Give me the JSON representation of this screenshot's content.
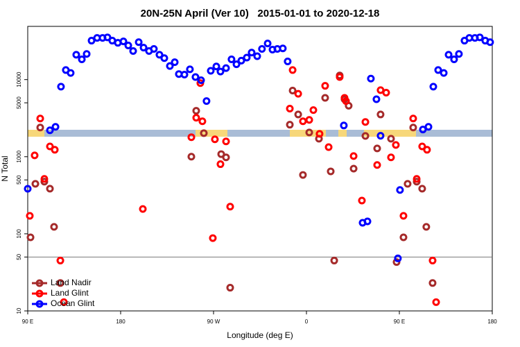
{
  "chart_data": {
    "type": "scatter",
    "title": "20N-25N April (Ver 10)   2015-01-01 to 2020-12-18",
    "xlabel": "Longitude (deg E)",
    "ylabel": "N Total",
    "xlim": [
      90,
      540
    ],
    "ylim": [
      10,
      49000
    ],
    "log_y": true,
    "xticks": [
      {
        "value": 90,
        "label": "90 E"
      },
      180,
      {
        "value": 270,
        "label": "90 W"
      },
      {
        "value": 360,
        "label": "0"
      },
      {
        "value": 450,
        "label": "90 E"
      },
      {
        "value": 540,
        "label": "180"
      }
    ],
    "yticks": [
      10,
      50,
      100,
      500,
      1000,
      5000,
      10000
    ],
    "hlines": [
      50
    ],
    "legend": "lower left",
    "series": [
      {
        "name": "Land Nadir",
        "color": "#a52a2a",
        "x": [
          92.7,
          97.4,
          102.1,
          106.1,
          111.5,
          115.5,
          121.6,
          248.5,
          253.2,
          260.6,
          277.4,
          282.1,
          286.1,
          343.9,
          346.6,
          352,
          356.6,
          362.7,
          372.1,
          378.1,
          383.5,
          386.9,
          392.2,
          396.9,
          400.9,
          405.7,
          417.1,
          428.5,
          431.8,
          441.9,
          447.3,
          454,
          458,
          463.4,
          466.8,
          472.1,
          476.1,
          482.2
        ],
        "values": [
          90,
          445,
          2390,
          475,
          385,
          123,
          23,
          1000,
          3940,
          2020,
          1080,
          980,
          20,
          2600,
          7200,
          3530,
          580,
          2060,
          1710,
          5800,
          645,
          45,
          11300,
          5560,
          4580,
          700,
          1860,
          1280,
          3530,
          1710,
          43,
          90,
          445,
          2390,
          475,
          385,
          123,
          23
        ]
      },
      {
        "name": "Land Glint",
        "color": "#ff0000",
        "x": [
          92,
          96.7,
          102.1,
          106.1,
          111.5,
          116.2,
          121.6,
          125,
          201.5,
          248.5,
          253.2,
          257.2,
          259.2,
          269.3,
          271.3,
          276.7,
          282.1,
          286.1,
          343.9,
          346.6,
          352,
          356.6,
          362.7,
          366.7,
          372.7,
          378.1,
          381.5,
          392.2,
          396.9,
          398.3,
          405.7,
          413.7,
          417.1,
          428.5,
          431.8,
          437.2,
          441.9,
          446.6,
          454,
          463.4,
          466.8,
          472.1,
          476.8,
          482.2,
          485.6
        ],
        "values": [
          171,
          1040,
          3130,
          515,
          1360,
          1230,
          45,
          13,
          210,
          1790,
          3200,
          9000,
          2880,
          88,
          1680,
          800,
          1580,
          225,
          4200,
          13300,
          6550,
          2880,
          3000,
          4020,
          1980,
          8300,
          1330,
          10800,
          5800,
          5270,
          1020,
          270,
          2820,
          780,
          7300,
          6770,
          980,
          1420,
          171,
          3130,
          515,
          1360,
          1230,
          45,
          13
        ]
      },
      {
        "name": "Ocean Glint",
        "color": "#0000ff",
        "x": [
          90,
          111.5,
          116.9,
          122.2,
          126.9,
          131.6,
          137,
          142.4,
          147.1,
          151.8,
          157.2,
          162.5,
          167.2,
          171.9,
          177.3,
          182.7,
          187.4,
          192.1,
          197.5,
          202.2,
          207.5,
          212.2,
          217.6,
          222.3,
          227.7,
          232.4,
          236.4,
          241.8,
          247.1,
          252.5,
          257.9,
          263.2,
          267.3,
          272.7,
          276.7,
          282.1,
          287.4,
          292.2,
          296.9,
          302.2,
          306.9,
          312.3,
          316.9,
          322.4,
          327.1,
          331.8,
          337.1,
          341.8,
          396.2,
          414.4,
          419.1,
          422.4,
          427.8,
          431.8,
          448.6,
          450.6,
          472.8,
          478.2,
          482.9,
          487.6,
          493,
          497.7,
          503,
          507.7,
          513.1,
          517.8,
          523.2,
          527.9,
          533.2,
          537.9
        ],
        "values": [
          384,
          2200,
          2440,
          8100,
          13300,
          12200,
          21000,
          18300,
          21500,
          32000,
          34700,
          34700,
          35300,
          32000,
          30000,
          31300,
          27700,
          23500,
          30600,
          26000,
          23500,
          25000,
          21000,
          19000,
          15000,
          16800,
          11800,
          11600,
          13600,
          10800,
          9800,
          5270,
          13000,
          14800,
          12700,
          14100,
          18300,
          15800,
          17600,
          19300,
          22400,
          20100,
          25000,
          29400,
          24500,
          25000,
          25400,
          17200,
          2540,
          139,
          145,
          10300,
          5560,
          1870,
          48,
          370,
          2250,
          2440,
          8100,
          13300,
          12200,
          21000,
          18300,
          21500,
          32000,
          34700,
          34700,
          35300,
          32000,
          30600
        ]
      }
    ]
  }
}
